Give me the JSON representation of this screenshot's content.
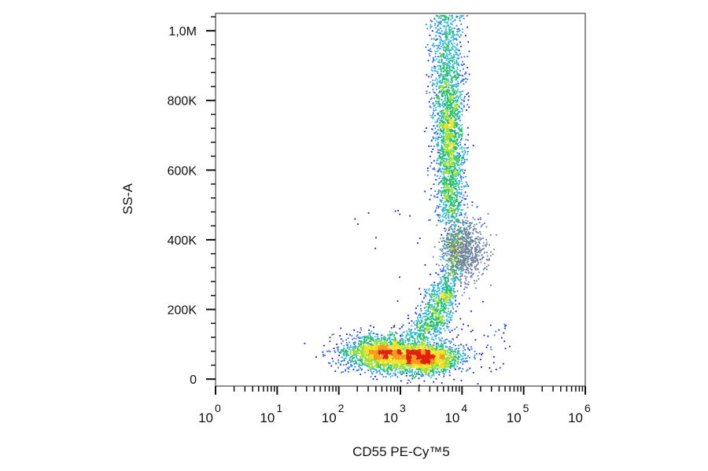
{
  "chart_data": {
    "type": "scatter",
    "plot_style": "flow-cytometry density dot plot",
    "xlabel": "CD55 PE-Cy™5",
    "ylabel": "SS-A",
    "x_scale": "log",
    "xlim": [
      1,
      1000000
    ],
    "ylim": [
      -20000,
      1050000
    ],
    "x_ticks": [
      {
        "value": 1,
        "base": "10",
        "exp": "0"
      },
      {
        "value": 10,
        "base": "10",
        "exp": "1"
      },
      {
        "value": 100,
        "base": "10",
        "exp": "2"
      },
      {
        "value": 1000,
        "base": "10",
        "exp": "3"
      },
      {
        "value": 10000,
        "base": "10",
        "exp": "4"
      },
      {
        "value": 100000,
        "base": "10",
        "exp": "5"
      },
      {
        "value": 1000000,
        "base": "10",
        "exp": "6"
      }
    ],
    "y_ticks": [
      {
        "value": 0,
        "label": "0"
      },
      {
        "value": 200000,
        "label": "200K"
      },
      {
        "value": 400000,
        "label": "400K"
      },
      {
        "value": 600000,
        "label": "600K"
      },
      {
        "value": 800000,
        "label": "800K"
      },
      {
        "value": 1000000,
        "label": "1,0M"
      }
    ],
    "grid": false,
    "legend": "none",
    "density_colors": [
      "#1a14cc",
      "#2a6ef0",
      "#2fb8d8",
      "#22c06a",
      "#9be030",
      "#f0e020",
      "#f59a18",
      "#e02010"
    ],
    "gated_color": "#6f7f9f",
    "populations": [
      {
        "x": 500,
        "y": 75000,
        "points": 1900,
        "note": "low-SS population, cluster A"
      },
      {
        "x": 2500,
        "y": 60000,
        "points": 1600,
        "note": "low-SS population, cluster B"
      },
      {
        "x": 6000,
        "y": 700000,
        "points": 2400,
        "note": "high-SS vertical band"
      },
      {
        "x": 12000,
        "y": 370000,
        "points": 700,
        "note": "intermediate gated (grey) population"
      }
    ]
  }
}
